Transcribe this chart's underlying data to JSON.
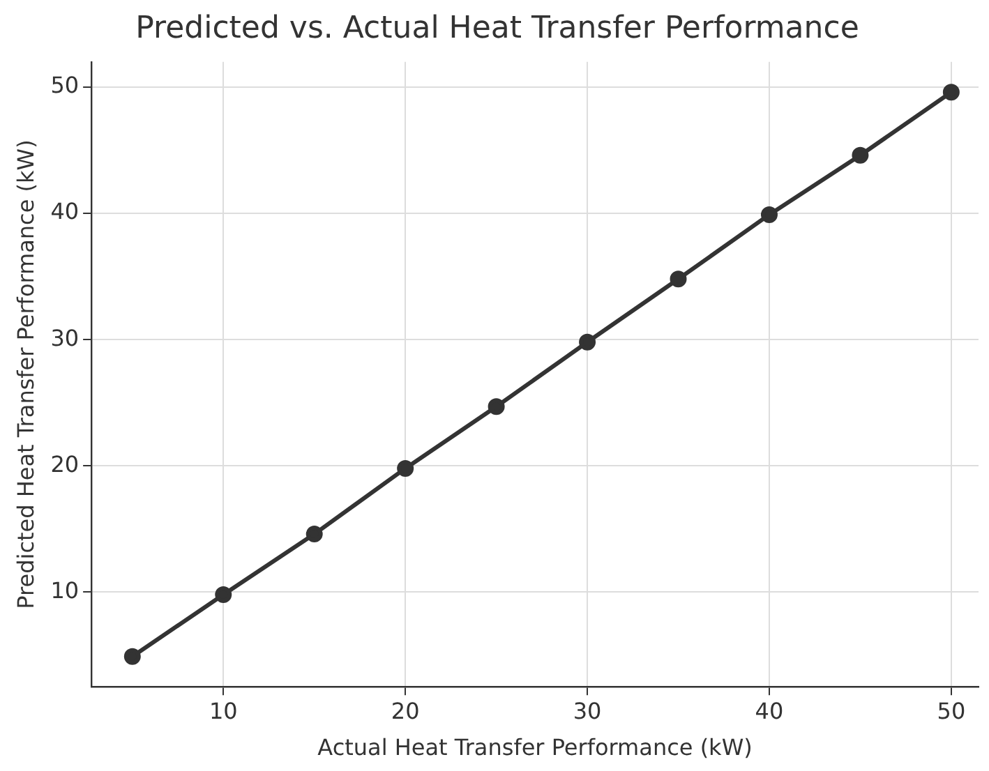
{
  "chart_data": {
    "type": "line",
    "title": "Predicted vs. Actual Heat Transfer Performance",
    "xlabel": "Actual Heat Transfer Performance (kW)",
    "ylabel": "Predicted Heat Transfer Performance (kW)",
    "x": [
      5,
      10,
      15,
      20,
      25,
      30,
      35,
      40,
      45,
      50
    ],
    "series": [
      {
        "color": "#333333",
        "values": [
          4.9,
          9.8,
          14.6,
          19.8,
          24.7,
          29.8,
          34.8,
          39.9,
          44.6,
          49.6
        ]
      }
    ],
    "xlim": [
      2.75,
      51.5
    ],
    "ylim": [
      2.5,
      52
    ],
    "xticks": [
      10,
      20,
      30,
      40,
      50
    ],
    "yticks": [
      10,
      20,
      30,
      40,
      50
    ],
    "grid": true,
    "legend": false,
    "marker": "circle",
    "line_style": "solid"
  }
}
